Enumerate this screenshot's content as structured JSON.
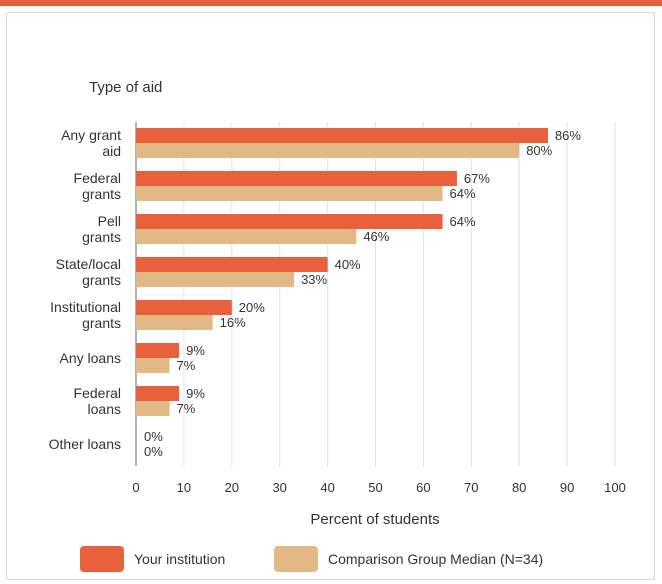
{
  "colors": {
    "accent": "#E8603C",
    "institution": "#E8603C",
    "comparison": "#E2B887",
    "grid": "#e3e3e3",
    "axis": "#999999"
  },
  "legend": {
    "institution": "Your institution",
    "comparison": "Comparison Group Median (N=34)"
  },
  "chart_data": {
    "type": "bar",
    "orientation": "horizontal",
    "title": "Type of aid",
    "xlabel": "Percent of students",
    "ylabel": "",
    "xlim": [
      0,
      100
    ],
    "xticks": [
      0,
      10,
      20,
      30,
      40,
      50,
      60,
      70,
      80,
      90,
      100
    ],
    "grid": true,
    "legend_position": "bottom",
    "categories": [
      [
        "Any grant",
        "aid"
      ],
      [
        "Federal",
        "grants"
      ],
      [
        "Pell",
        "grants"
      ],
      [
        "State/local",
        "grants"
      ],
      [
        "Institutional",
        "grants"
      ],
      [
        "Any loans"
      ],
      [
        "Federal",
        "loans"
      ],
      [
        "Other loans"
      ]
    ],
    "series": [
      {
        "name": "Your institution",
        "values": [
          86,
          67,
          64,
          40,
          20,
          9,
          9,
          0
        ]
      },
      {
        "name": "Comparison Group Median (N=34)",
        "values": [
          80,
          64,
          46,
          33,
          16,
          7,
          7,
          0
        ]
      }
    ],
    "value_suffix": "%"
  }
}
